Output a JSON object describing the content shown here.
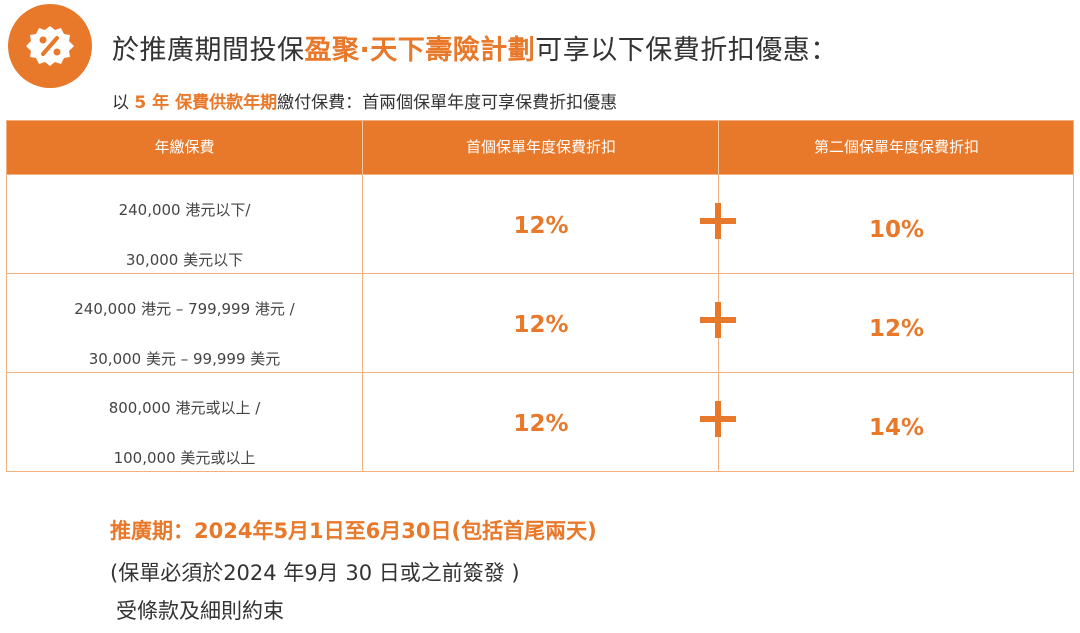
{
  "header": {
    "headline_pre": "於推廣期間投保",
    "headline_plan": "盈聚·天下壽險計劃",
    "headline_post": "可享以下保費折扣優惠：",
    "sub_pre": "以",
    "sub_hl": "5 年 保費供款年期",
    "sub_post": "繳付保費：首兩個保單年度可享保費折扣優惠"
  },
  "table": {
    "headers": [
      "年繳保費",
      "首個保單年度保費折扣",
      "第二個保單年度保費折扣"
    ],
    "rows": [
      {
        "line1": "240,000 港元以下/",
        "line2": "30,000 美元以下",
        "first": "12%",
        "second": "10%"
      },
      {
        "line1": "240,000 港元 – 799,999 港元 /",
        "line2": "30,000 美元 – 99,999 美元",
        "first": "12%",
        "second": "12%"
      },
      {
        "line1": "800,000 港元或以上 /",
        "line2": "100,000 美元或以上",
        "first": "12%",
        "second": "14%"
      }
    ]
  },
  "footer": {
    "promo_period": "推廣期：2024年5月1日至6月30日(包括首尾兩天)",
    "issue_note": "(保單必須於2024 年9月 30 日或之前簽發 )",
    "terms": "受條款及細則約束"
  },
  "icons": {
    "badge": "discount-percent-icon",
    "plus": "plus-icon"
  },
  "colors": {
    "accent": "#e8782a",
    "text": "#333333"
  }
}
